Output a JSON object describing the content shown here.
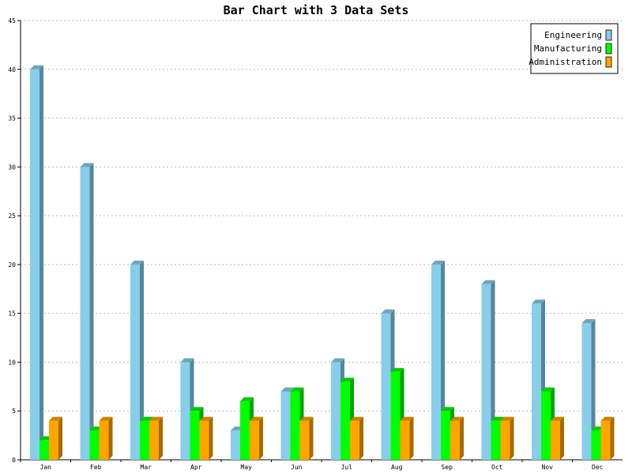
{
  "chart_data": {
    "type": "bar",
    "title": "Bar Chart with 3 Data Sets",
    "xlabel": "",
    "ylabel": "",
    "categories": [
      "Jan",
      "Feb",
      "Mar",
      "Apr",
      "May",
      "Jun",
      "Jul",
      "Aug",
      "Sep",
      "Oct",
      "Nov",
      "Dec"
    ],
    "series": [
      {
        "name": "Engineering",
        "color": "#87ceeb",
        "values": [
          40,
          30,
          20,
          10,
          3,
          7,
          10,
          15,
          20,
          18,
          16,
          14
        ]
      },
      {
        "name": "Manufacturing",
        "color": "#00ff00",
        "values": [
          2,
          3,
          4,
          5,
          6,
          7,
          8,
          9,
          5,
          4,
          7,
          3
        ]
      },
      {
        "name": "Administration",
        "color": "#ffa500",
        "values": [
          4,
          4,
          4,
          4,
          4,
          4,
          4,
          4,
          4,
          4,
          4,
          4
        ]
      }
    ],
    "ylim": [
      0,
      45
    ],
    "yticks": [
      "0",
      "5",
      "10",
      "15",
      "20",
      "25",
      "30",
      "35",
      "40",
      "45"
    ],
    "grid": true,
    "legend_position": "top-right",
    "style": "3d"
  }
}
